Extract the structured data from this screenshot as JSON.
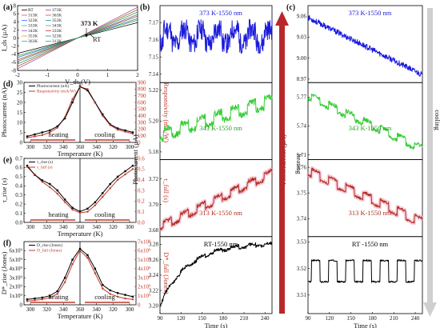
{
  "colors": {
    "black": "#000000",
    "red": "#c0392b",
    "darkred": "#a52a2a",
    "blue": "#1a1adc",
    "green": "#33cc33",
    "brown": "#b0301e",
    "pink": "#f3a8c4",
    "arrowRed": "#b8282a",
    "arrowGray": "#cfcfcf"
  },
  "chart_data": [
    {
      "panel": "(a)",
      "type": "line",
      "xlabel": "V_ds (V)",
      "ylabel": "I_ds (µA)",
      "xlim": [
        -2,
        2
      ],
      "ylim": [
        -8,
        8
      ],
      "xticks": [
        -2,
        -1,
        0,
        1,
        2
      ],
      "yticks": [
        -8,
        -6,
        -4,
        -2,
        0,
        2,
        4,
        6,
        8
      ],
      "annotations": [
        "373 K",
        "RT"
      ],
      "legend_position": "top-left",
      "series": [
        {
          "name": "RT",
          "slope": 1.9,
          "color": "#000000"
        },
        {
          "name": "313K",
          "slope": 2.2,
          "color": "#e74c3c"
        },
        {
          "name": "323K",
          "slope": 2.4,
          "color": "#3366ff"
        },
        {
          "name": "333K",
          "slope": 2.7,
          "color": "#2ecc71"
        },
        {
          "name": "343K",
          "slope": 2.9,
          "color": "#9b59b6"
        },
        {
          "name": "353K",
          "slope": 3.2,
          "color": "#f39c12"
        },
        {
          "name": "363K",
          "slope": 3.5,
          "color": "#1abc9c"
        },
        {
          "name": "373K",
          "slope": 3.8,
          "color": "#8e44ad"
        },
        {
          "name": "363K",
          "slope": 3.5,
          "color": "#d35400"
        },
        {
          "name": "353K",
          "slope": 3.2,
          "color": "#16a085"
        },
        {
          "name": "343K",
          "slope": 2.9,
          "color": "#7f8c8d"
        },
        {
          "name": "333K",
          "slope": 2.7,
          "color": "#c0392b"
        },
        {
          "name": "323K",
          "slope": 2.4,
          "color": "#2980b9"
        },
        {
          "name": "313K",
          "slope": 2.2,
          "color": "#27ae60"
        }
      ]
    },
    {
      "panel": "(d)",
      "type": "line",
      "xlabel": "Temperature (K)",
      "ylabel_left": "Photocurrent (nA)",
      "ylabel_right": "Responsivity (mA/W)",
      "ylim_left": [
        0,
        30
      ],
      "ylim_right": [
        0,
        900
      ],
      "yticks_left": [
        0,
        5,
        10,
        15,
        20,
        25,
        30
      ],
      "yticks_right": [
        0,
        100,
        200,
        300,
        400,
        500,
        600,
        700,
        800,
        900
      ],
      "xticks": [
        "300",
        "320",
        "340",
        "360",
        "340",
        "320",
        "300"
      ],
      "regions": [
        "heating",
        "cooling"
      ],
      "legend": [
        "Photocurrent (nA)",
        "Responsivity (mA/W)"
      ],
      "temps": [
        298,
        313,
        323,
        333,
        343,
        353,
        363,
        373,
        363,
        353,
        343,
        333,
        323,
        313,
        298
      ],
      "series": [
        {
          "name": "Photocurrent (nA)",
          "axis": "left",
          "values": [
            3,
            4,
            5,
            6,
            8,
            12,
            20,
            28,
            26,
            20,
            14,
            9,
            7,
            6,
            5
          ]
        },
        {
          "name": "Responsivity (mA/W)",
          "axis": "right",
          "values": [
            70,
            90,
            110,
            150,
            220,
            380,
            650,
            830,
            800,
            600,
            400,
            260,
            190,
            160,
            130
          ]
        }
      ]
    },
    {
      "panel": "(e)",
      "type": "line",
      "xlabel": "Temperature (K)",
      "ylabel_left": "τ_rise (s)",
      "ylabel_right": "τ_fall (s)",
      "ylim_left": [
        0,
        0.7
      ],
      "ylim_right": [
        0,
        0.6
      ],
      "yticks_left": [
        0.0,
        0.1,
        0.2,
        0.3,
        0.4,
        0.5,
        0.6,
        0.7
      ],
      "yticks_right": [
        0.0,
        0.1,
        0.2,
        0.3,
        0.4,
        0.5,
        0.6
      ],
      "xticks": [
        "300",
        "320",
        "340",
        "360",
        "340",
        "320",
        "300"
      ],
      "regions": [
        "heating",
        "cooling"
      ],
      "legend": [
        "τ_rise (s)",
        "τ_fall (s)"
      ],
      "temps": [
        298,
        313,
        323,
        333,
        343,
        353,
        363,
        373,
        363,
        353,
        343,
        333,
        323,
        313,
        298
      ],
      "series": [
        {
          "name": "τ_rise (s)",
          "axis": "left",
          "values": [
            0.62,
            0.52,
            0.46,
            0.42,
            0.35,
            0.25,
            0.16,
            0.12,
            0.15,
            0.22,
            0.32,
            0.42,
            0.5,
            0.56,
            0.62
          ]
        },
        {
          "name": "τ_fall (s)",
          "axis": "right",
          "values": [
            0.52,
            0.45,
            0.38,
            0.33,
            0.27,
            0.19,
            0.12,
            0.09,
            0.1,
            0.16,
            0.24,
            0.32,
            0.4,
            0.45,
            0.5
          ]
        }
      ]
    },
    {
      "panel": "(f)",
      "type": "line",
      "xlabel": "Temperature (K)",
      "ylabel_left": "D*_rise (Jones)",
      "ylabel_right": "D*_fall (Jones)",
      "ylim_left": [
        0,
        7000000000.0
      ],
      "ylim_right": [
        0,
        7000000000.0
      ],
      "yticks_left_labels": [
        "0",
        "1x10⁹",
        "2x10⁹",
        "3x10⁹",
        "4x10⁹",
        "5x10⁹",
        "6x10⁹"
      ],
      "yticks_right_labels": [
        "0",
        "1x10⁹",
        "2x10⁹",
        "3x10⁹",
        "4x10⁹",
        "5x10⁹",
        "6x10⁹",
        "7x10⁹"
      ],
      "xticks": [
        "300",
        "320",
        "340",
        "360",
        "340",
        "320",
        "300"
      ],
      "regions": [
        "heating",
        "cooling"
      ],
      "legend": [
        "D_rise (Jones)",
        "D_fall (Jones)"
      ],
      "temps": [
        298,
        313,
        323,
        333,
        343,
        353,
        363,
        373,
        363,
        353,
        343,
        333,
        323,
        313,
        298
      ],
      "series": [
        {
          "name": "D_rise (Jones)",
          "axis": "left",
          "values": [
            600000000.0,
            700000000.0,
            800000000.0,
            1000000000.0,
            1500000000.0,
            3000000000.0,
            5000000000.0,
            6200000000.0,
            5500000000.0,
            4000000000.0,
            2200000000.0,
            1600000000.0,
            1300000000.0,
            1100000000.0,
            900000000.0
          ]
        },
        {
          "name": "D_fall (Jones)",
          "axis": "right",
          "values": [
            400000000.0,
            500000000.0,
            600000000.0,
            800000000.0,
            1200000000.0,
            2500000000.0,
            4500000000.0,
            6000000000.0,
            5200000000.0,
            3500000000.0,
            1800000000.0,
            1200000000.0,
            900000000.0,
            700000000.0,
            600000000.0
          ]
        }
      ]
    },
    {
      "panel": "(b)",
      "type": "line",
      "direction": "heating",
      "xlabel": "Time (s)",
      "ylabel": "Photocurrent (µA)",
      "xlim": [
        90,
        250
      ],
      "xticks": [
        90,
        120,
        150,
        180,
        210,
        240
      ],
      "subplots": [
        {
          "label": "373 K-1550 nm",
          "color": "#1a1adc",
          "ylim": [
            7.135,
            7.18
          ],
          "yticks": [
            7.14,
            7.15,
            7.16,
            7.17
          ],
          "baseline": 7.158,
          "trend": 0.0,
          "amp": 0.008,
          "noise": 0.006,
          "shade": false
        },
        {
          "label": "343 K-1550 nm",
          "color": "#33cc33",
          "ylim": [
            5.175,
            5.225
          ],
          "yticks": [
            5.18,
            5.2,
            5.22
          ],
          "baseline": 5.188,
          "trend": 0.022,
          "amp": 0.006,
          "noise": 0.002,
          "shade": false
        },
        {
          "label": "313 K-1550 nm",
          "color": "#b0301e",
          "ylim": [
            3.675,
            3.735
          ],
          "yticks": [
            3.68,
            3.7,
            3.72
          ],
          "baseline": 3.68,
          "trend": 0.042,
          "amp": 0.005,
          "noise": 0.0015,
          "shade": true
        },
        {
          "label": "RT-1550 nm",
          "color": "#000000",
          "ylim": [
            3.19,
            3.29
          ],
          "yticks": [
            3.2,
            3.22,
            3.24,
            3.26,
            3.28
          ],
          "baseline": 3.2,
          "trend": 0.08,
          "amp": 0.003,
          "noise": 0.002,
          "shade": false,
          "rising": true
        }
      ]
    },
    {
      "panel": "(c)",
      "type": "line",
      "direction": "cooling",
      "xlabel": "Time (s)",
      "ylabel": "Photocurrent (µA)",
      "xlim": [
        90,
        250
      ],
      "xticks": [
        90,
        120,
        150,
        180,
        210,
        240
      ],
      "subplots": [
        {
          "label": "373 K-1550 nm",
          "color": "#1a1adc",
          "ylim": [
            8.965,
            9.075
          ],
          "yticks": [
            8.97,
            9.0,
            9.03,
            9.06
          ],
          "baseline": 9.058,
          "trend": -0.082,
          "amp": 0.0,
          "noise": 0.004,
          "shade": false
        },
        {
          "label": "343 K-1550 nm",
          "color": "#33cc33",
          "ylim": [
            5.705,
            5.785
          ],
          "yticks": [
            5.71,
            5.74,
            5.77
          ],
          "baseline": 5.768,
          "trend": -0.055,
          "amp": 0.006,
          "noise": 0.002,
          "shade": false
        },
        {
          "label": "313 K-1550 nm",
          "color": "#b0301e",
          "ylim": [
            3.733,
            3.763
          ],
          "yticks": [
            3.74,
            3.75,
            3.76
          ],
          "baseline": 3.757,
          "trend": -0.02,
          "amp": 0.003,
          "noise": 0.0005,
          "shade": true
        },
        {
          "label": "RT -1550 nm",
          "color": "#000000",
          "ylim": [
            3.503,
            3.532
          ],
          "yticks": [
            3.51,
            3.52,
            3.53
          ],
          "baseline": 3.515,
          "trend": 0.0,
          "amp": 0.008,
          "noise": 0.0003,
          "shade": false
        }
      ]
    }
  ],
  "labels": {
    "heating": "heating",
    "cooling": "cooling"
  }
}
